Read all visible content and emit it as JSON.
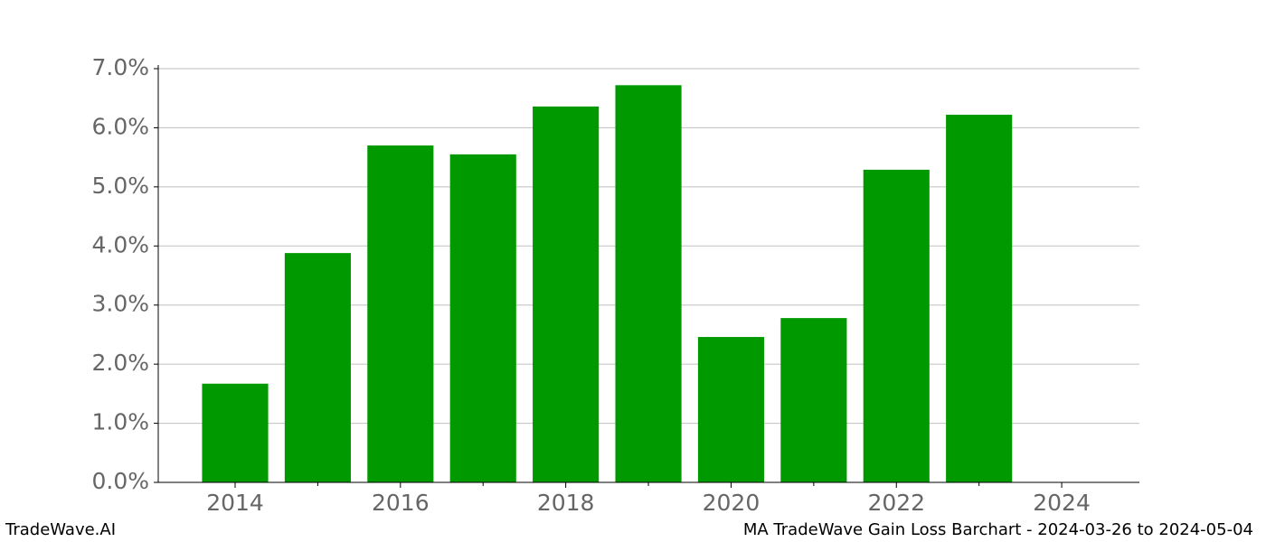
{
  "chart_data": {
    "type": "bar",
    "title": "MA TradeWave Gain Loss Barchart - 2024-03-26 to 2024-05-04",
    "brand": "TradeWave.AI",
    "x": [
      2014,
      2015,
      2016,
      2017,
      2018,
      2019,
      2020,
      2021,
      2022,
      2023
    ],
    "values": [
      1.67,
      3.88,
      5.7,
      5.55,
      6.36,
      6.72,
      2.46,
      2.78,
      5.29,
      6.22
    ],
    "color": "#009900",
    "bar_width": 0.8,
    "xlim": [
      2013.07,
      2024.94
    ],
    "xticks": [
      2014,
      2016,
      2018,
      2020,
      2022,
      2024
    ],
    "xminorticks": [
      2015,
      2017,
      2019,
      2021,
      2023
    ],
    "ylim": [
      0,
      7
    ],
    "yticks": [
      {
        "value": 0,
        "label": "0.0%"
      },
      {
        "value": 1,
        "label": "1.0%"
      },
      {
        "value": 2,
        "label": "2.0%"
      },
      {
        "value": 3,
        "label": "3.0%"
      },
      {
        "value": 4,
        "label": "4.0%"
      },
      {
        "value": 5,
        "label": "5.0%"
      },
      {
        "value": 6,
        "label": "6.0%"
      },
      {
        "value": 7,
        "label": "7.0%"
      }
    ],
    "grid": true
  }
}
